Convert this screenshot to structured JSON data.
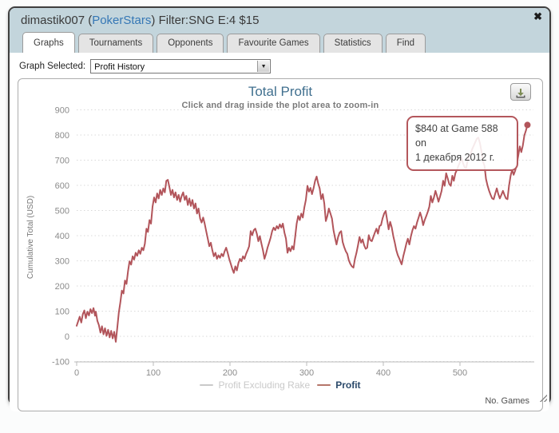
{
  "window": {
    "title_prefix": "dimastik007 (",
    "title_link": "PokerStars",
    "title_suffix": ") Filter:SNG E:4 $15",
    "close_glyph": "✖"
  },
  "tabs": [
    {
      "label": "Graphs",
      "active": true
    },
    {
      "label": "Tournaments",
      "active": false
    },
    {
      "label": "Opponents",
      "active": false
    },
    {
      "label": "Favourite Games",
      "active": false
    },
    {
      "label": "Statistics",
      "active": false
    },
    {
      "label": "Find",
      "active": false
    }
  ],
  "graph_selector": {
    "label": "Graph Selected:",
    "selected": "Profit History"
  },
  "chart": {
    "title": "Total Profit",
    "subtitle": "Click and drag inside the plot area to zoom-in",
    "tooltip_line1": "$840 at Game 588 on",
    "tooltip_line2": "1 декабря 2012 г.",
    "download_icon": "download-icon",
    "colors": {
      "accent_line": "#b2555b",
      "title_blue": "#41708f",
      "link_blue": "#3577b5",
      "titlebar_bg": "#c3d5dc"
    }
  },
  "chart_data": {
    "type": "line",
    "title": "Total Profit",
    "subtitle": "Click and drag inside the plot area to zoom-in",
    "xlabel": "No. Games",
    "ylabel": "Cumulative Total (USD)",
    "xlim": [
      0,
      600
    ],
    "ylim": [
      -100,
      900
    ],
    "xticks": [
      0,
      100,
      200,
      300,
      400,
      500
    ],
    "yticks": [
      900,
      800,
      700,
      600,
      500,
      400,
      300,
      200,
      100,
      0,
      -100
    ],
    "grid": "dotted-horizontal",
    "legend_position": "bottom-center",
    "line_color": "#b2555b",
    "annotation": "$840 at Game 588 on 1 декабря 2012 г.",
    "end_point": [
      588,
      840
    ],
    "legend": [
      {
        "label": "Profit Excluding Rake",
        "dash_color": "#c9c9c9",
        "text_color": "#c9c9c9",
        "visible": false
      },
      {
        "label": "Profit",
        "dash_color": "#b5766a",
        "text_color": "#2b4a6b",
        "visible": true
      }
    ],
    "series": [
      {
        "name": "Profit",
        "points": [
          [
            0,
            42
          ],
          [
            2,
            60
          ],
          [
            4,
            78
          ],
          [
            6,
            55
          ],
          [
            8,
            88
          ],
          [
            10,
            103
          ],
          [
            12,
            72
          ],
          [
            14,
            98
          ],
          [
            16,
            83
          ],
          [
            18,
            108
          ],
          [
            20,
            92
          ],
          [
            22,
            112
          ],
          [
            24,
            82
          ],
          [
            25,
            98
          ],
          [
            27,
            62
          ],
          [
            29,
            45
          ],
          [
            31,
            15
          ],
          [
            33,
            40
          ],
          [
            35,
            8
          ],
          [
            37,
            32
          ],
          [
            39,
            2
          ],
          [
            41,
            26
          ],
          [
            43,
            -4
          ],
          [
            45,
            22
          ],
          [
            47,
            -8
          ],
          [
            49,
            18
          ],
          [
            51,
            -22
          ],
          [
            53,
            35
          ],
          [
            55,
            95
          ],
          [
            57,
            135
          ],
          [
            59,
            182
          ],
          [
            61,
            170
          ],
          [
            63,
            222
          ],
          [
            65,
            208
          ],
          [
            67,
            258
          ],
          [
            69,
            298
          ],
          [
            71,
            285
          ],
          [
            73,
            318
          ],
          [
            75,
            305
          ],
          [
            77,
            332
          ],
          [
            79,
            320
          ],
          [
            81,
            342
          ],
          [
            83,
            328
          ],
          [
            85,
            352
          ],
          [
            87,
            342
          ],
          [
            89,
            368
          ],
          [
            91,
            428
          ],
          [
            93,
            415
          ],
          [
            95,
            462
          ],
          [
            97,
            448
          ],
          [
            99,
            515
          ],
          [
            101,
            552
          ],
          [
            103,
            532
          ],
          [
            105,
            568
          ],
          [
            107,
            548
          ],
          [
            109,
            582
          ],
          [
            111,
            562
          ],
          [
            113,
            588
          ],
          [
            115,
            572
          ],
          [
            117,
            618
          ],
          [
            119,
            622
          ],
          [
            121,
            592
          ],
          [
            123,
            562
          ],
          [
            125,
            582
          ],
          [
            127,
            552
          ],
          [
            129,
            572
          ],
          [
            131,
            542
          ],
          [
            133,
            562
          ],
          [
            135,
            535
          ],
          [
            137,
            558
          ],
          [
            139,
            572
          ],
          [
            141,
            542
          ],
          [
            143,
            558
          ],
          [
            145,
            522
          ],
          [
            147,
            548
          ],
          [
            149,
            518
          ],
          [
            151,
            542
          ],
          [
            153,
            508
          ],
          [
            155,
            528
          ],
          [
            157,
            488
          ],
          [
            159,
            508
          ],
          [
            161,
            468
          ],
          [
            163,
            452
          ],
          [
            165,
            472
          ],
          [
            167,
            448
          ],
          [
            169,
            418
          ],
          [
            171,
            388
          ],
          [
            173,
            358
          ],
          [
            175,
            372
          ],
          [
            177,
            342
          ],
          [
            179,
            318
          ],
          [
            181,
            332
          ],
          [
            183,
            308
          ],
          [
            185,
            322
          ],
          [
            187,
            312
          ],
          [
            189,
            328
          ],
          [
            191,
            318
          ],
          [
            193,
            338
          ],
          [
            195,
            352
          ],
          [
            197,
            332
          ],
          [
            199,
            308
          ],
          [
            201,
            288
          ],
          [
            203,
            268
          ],
          [
            205,
            252
          ],
          [
            207,
            278
          ],
          [
            209,
            262
          ],
          [
            211,
            292
          ],
          [
            213,
            308
          ],
          [
            215,
            298
          ],
          [
            217,
            318
          ],
          [
            219,
            308
          ],
          [
            221,
            328
          ],
          [
            223,
            342
          ],
          [
            225,
            358
          ],
          [
            227,
            418
          ],
          [
            229,
            402
          ],
          [
            231,
            422
          ],
          [
            233,
            428
          ],
          [
            235,
            408
          ],
          [
            237,
            378
          ],
          [
            239,
            398
          ],
          [
            241,
            368
          ],
          [
            243,
            342
          ],
          [
            245,
            308
          ],
          [
            247,
            328
          ],
          [
            249,
            352
          ],
          [
            251,
            372
          ],
          [
            253,
            392
          ],
          [
            255,
            418
          ],
          [
            257,
            432
          ],
          [
            259,
            422
          ],
          [
            261,
            438
          ],
          [
            263,
            428
          ],
          [
            265,
            445
          ],
          [
            267,
            432
          ],
          [
            269,
            448
          ],
          [
            271,
            412
          ],
          [
            273,
            388
          ],
          [
            275,
            332
          ],
          [
            277,
            352
          ],
          [
            279,
            338
          ],
          [
            281,
            358
          ],
          [
            283,
            345
          ],
          [
            285,
            395
          ],
          [
            287,
            448
          ],
          [
            289,
            478
          ],
          [
            291,
            462
          ],
          [
            293,
            488
          ],
          [
            295,
            472
          ],
          [
            297,
            512
          ],
          [
            299,
            542
          ],
          [
            301,
            598
          ],
          [
            303,
            575
          ],
          [
            305,
            590
          ],
          [
            307,
            565
          ],
          [
            309,
            588
          ],
          [
            311,
            618
          ],
          [
            313,
            635
          ],
          [
            315,
            608
          ],
          [
            317,
            588
          ],
          [
            319,
            545
          ],
          [
            321,
            565
          ],
          [
            323,
            528
          ],
          [
            325,
            458
          ],
          [
            327,
            478
          ],
          [
            329,
            508
          ],
          [
            331,
            488
          ],
          [
            333,
            468
          ],
          [
            335,
            422
          ],
          [
            337,
            392
          ],
          [
            339,
            365
          ],
          [
            341,
            395
          ],
          [
            343,
            412
          ],
          [
            345,
            418
          ],
          [
            347,
            375
          ],
          [
            349,
            355
          ],
          [
            351,
            338
          ],
          [
            353,
            328
          ],
          [
            355,
            302
          ],
          [
            357,
            288
          ],
          [
            359,
            278
          ],
          [
            361,
            273
          ],
          [
            363,
            308
          ],
          [
            365,
            332
          ],
          [
            367,
            362
          ],
          [
            369,
            395
          ],
          [
            371,
            372
          ],
          [
            373,
            385
          ],
          [
            375,
            362
          ],
          [
            377,
            348
          ],
          [
            379,
            352
          ],
          [
            381,
            402
          ],
          [
            383,
            382
          ],
          [
            385,
            378
          ],
          [
            387,
            395
          ],
          [
            389,
            412
          ],
          [
            391,
            428
          ],
          [
            393,
            408
          ],
          [
            395,
            438
          ],
          [
            397,
            442
          ],
          [
            399,
            468
          ],
          [
            401,
            488
          ],
          [
            403,
            498
          ],
          [
            405,
            462
          ],
          [
            407,
            425
          ],
          [
            409,
            455
          ],
          [
            411,
            432
          ],
          [
            413,
            398
          ],
          [
            415,
            372
          ],
          [
            417,
            342
          ],
          [
            419,
            322
          ],
          [
            421,
            308
          ],
          [
            423,
            292
          ],
          [
            424,
            286
          ],
          [
            426,
            318
          ],
          [
            428,
            342
          ],
          [
            430,
            368
          ],
          [
            432,
            388
          ],
          [
            434,
            365
          ],
          [
            436,
            398
          ],
          [
            438,
            422
          ],
          [
            440,
            438
          ],
          [
            442,
            428
          ],
          [
            444,
            452
          ],
          [
            446,
            472
          ],
          [
            448,
            492
          ],
          [
            450,
            472
          ],
          [
            452,
            442
          ],
          [
            454,
            462
          ],
          [
            456,
            478
          ],
          [
            458,
            495
          ],
          [
            460,
            515
          ],
          [
            462,
            558
          ],
          [
            464,
            532
          ],
          [
            466,
            552
          ],
          [
            468,
            578
          ],
          [
            470,
            558
          ],
          [
            472,
            535
          ],
          [
            474,
            555
          ],
          [
            476,
            578
          ],
          [
            478,
            618
          ],
          [
            480,
            598
          ],
          [
            482,
            648
          ],
          [
            484,
            628
          ],
          [
            486,
            605
          ],
          [
            488,
            598
          ],
          [
            490,
            638
          ],
          [
            492,
            618
          ],
          [
            494,
            648
          ],
          [
            496,
            662
          ],
          [
            498,
            678
          ],
          [
            500,
            692
          ],
          [
            502,
            710
          ],
          [
            504,
            688
          ],
          [
            506,
            672
          ],
          [
            508,
            668
          ],
          [
            510,
            698
          ],
          [
            512,
            715
          ],
          [
            514,
            726
          ],
          [
            516,
            745
          ],
          [
            518,
            758
          ],
          [
            520,
            772
          ],
          [
            522,
            785
          ],
          [
            524,
            790
          ],
          [
            526,
            768
          ],
          [
            528,
            735
          ],
          [
            530,
            695
          ],
          [
            532,
            678
          ],
          [
            534,
            625
          ],
          [
            536,
            598
          ],
          [
            538,
            578
          ],
          [
            540,
            562
          ],
          [
            542,
            548
          ],
          [
            544,
            545
          ],
          [
            546,
            568
          ],
          [
            548,
            588
          ],
          [
            550,
            565
          ],
          [
            552,
            548
          ],
          [
            554,
            562
          ],
          [
            556,
            578
          ],
          [
            558,
            562
          ],
          [
            560,
            548
          ],
          [
            562,
            545
          ],
          [
            564,
            598
          ],
          [
            566,
            638
          ],
          [
            568,
            662
          ],
          [
            570,
            642
          ],
          [
            572,
            658
          ],
          [
            574,
            682
          ],
          [
            576,
            718
          ],
          [
            578,
            755
          ],
          [
            580,
            732
          ],
          [
            582,
            758
          ],
          [
            584,
            798
          ],
          [
            586,
            818
          ],
          [
            588,
            840
          ]
        ]
      }
    ]
  }
}
